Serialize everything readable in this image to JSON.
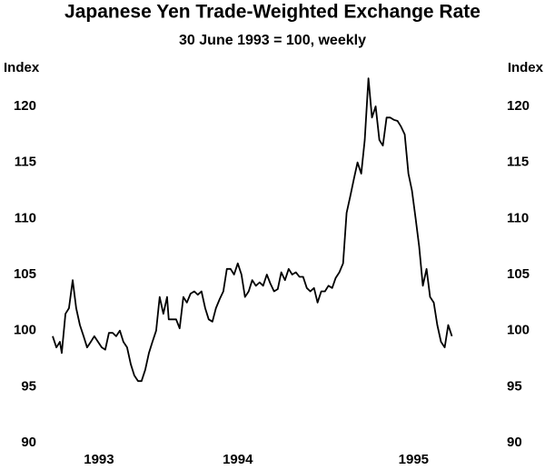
{
  "chart_data": {
    "type": "line",
    "title": "Japanese Yen Trade-Weighted Exchange Rate",
    "subtitle": "30 June 1993 = 100, weekly",
    "y_label": "Index",
    "x": [
      1993.5,
      1993.52,
      1993.539,
      1993.549,
      1993.569,
      1993.588,
      1993.608,
      1993.627,
      1993.647,
      1993.667,
      1993.686,
      1993.706,
      1993.725,
      1993.745,
      1993.765,
      1993.784,
      1993.804,
      1993.824,
      1993.843,
      1993.863,
      1993.882,
      1993.902,
      1993.922,
      1993.941,
      1993.961,
      1993.98,
      1994.0,
      1994.02,
      1994.039,
      1994.059,
      1994.078,
      1994.098,
      1994.118,
      1994.127,
      1994.147,
      1994.167,
      1994.186,
      1994.206,
      1994.225,
      1994.245,
      1994.265,
      1994.284,
      1994.304,
      1994.324,
      1994.343,
      1994.363,
      1994.382,
      1994.402,
      1994.422,
      1994.441,
      1994.461,
      1994.48,
      1994.5,
      1994.52,
      1994.539,
      1994.559,
      1994.578,
      1994.598,
      1994.618,
      1994.637,
      1994.657,
      1994.676,
      1994.696,
      1994.716,
      1994.735,
      1994.755,
      1994.775,
      1994.794,
      1994.814,
      1994.833,
      1994.853,
      1994.873,
      1994.892,
      1994.912,
      1994.931,
      1994.951,
      1994.971,
      1994.99,
      1995.01,
      1995.029,
      1995.049,
      1995.069,
      1995.088,
      1995.108,
      1995.127,
      1995.147,
      1995.167,
      1995.186,
      1995.206,
      1995.225,
      1995.245,
      1995.265,
      1995.284,
      1995.304,
      1995.324,
      1995.343,
      1995.363,
      1995.382,
      1995.402,
      1995.422,
      1995.441,
      1995.461,
      1995.48,
      1995.5,
      1995.52,
      1995.539,
      1995.559,
      1995.578,
      1995.598,
      1995.618,
      1995.637,
      1995.657
    ],
    "series": [
      {
        "color": "#000000",
        "values": [
          99.5,
          98.5,
          99,
          98,
          101.5,
          102,
          104.5,
          102,
          100.5,
          99.5,
          98.5,
          99,
          99.5,
          99,
          98.5,
          98.3,
          99.8,
          99.8,
          99.5,
          100,
          99,
          98.5,
          97,
          96,
          95.5,
          95.5,
          96.5,
          98,
          99,
          100,
          103,
          101.5,
          103,
          101,
          101,
          101,
          100.2,
          103,
          102.5,
          103.3,
          103.5,
          103.2,
          103.5,
          102,
          101,
          100.8,
          102,
          102.8,
          103.5,
          105.5,
          105.5,
          105,
          106,
          105,
          103,
          103.5,
          104.5,
          104,
          104.3,
          104,
          105,
          104.2,
          103.5,
          103.7,
          105.2,
          104.5,
          105.5,
          105,
          105.2,
          104.8,
          104.8,
          103.8,
          103.5,
          103.8,
          102.5,
          103.5,
          103.5,
          104,
          103.8,
          104.7,
          105.2,
          106,
          110.5,
          112,
          113.5,
          115,
          114,
          117,
          122.5,
          119,
          120,
          117,
          116.5,
          119,
          119,
          118.8,
          118.7,
          118.2,
          117.5,
          114,
          112.5,
          110,
          107.5,
          104,
          105.5,
          103,
          102.5,
          100.5,
          99,
          98.5,
          100.5,
          99.5
        ]
      }
    ],
    "xlim": [
      1993.5,
      1995.89
    ],
    "xticks": [
      {
        "value": 1993.75,
        "label": "1993"
      },
      {
        "value": 1994.5,
        "label": "1994"
      },
      {
        "value": 1995.45,
        "label": "1995"
      }
    ],
    "ylim": [
      90,
      123
    ],
    "yticks": [
      90,
      95,
      100,
      105,
      110,
      115,
      120
    ]
  }
}
